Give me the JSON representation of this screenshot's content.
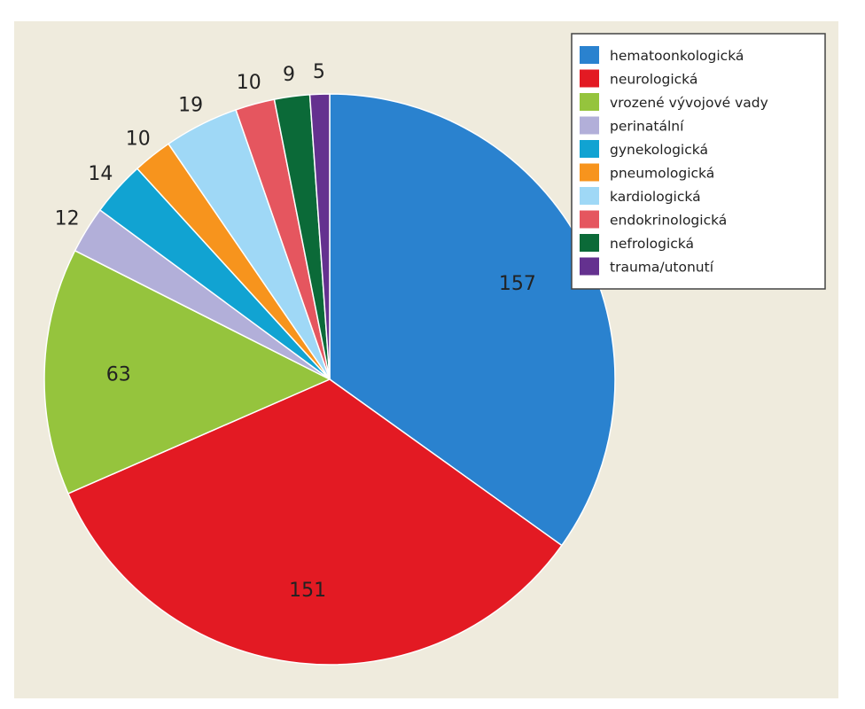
{
  "chart_data": {
    "type": "pie",
    "categories": [
      "hematoonkologická",
      "neurologická",
      "vrozené vývojové vady",
      "perinatální",
      "gynekologická",
      "pneumologická",
      "kardiologická",
      "endokrinologická",
      "nefrologická",
      "trauma/utonutí"
    ],
    "values": [
      157,
      151,
      63,
      12,
      14,
      10,
      19,
      10,
      9,
      5
    ],
    "colors": [
      "#2a82cf",
      "#e31a23",
      "#95c43d",
      "#b2afd9",
      "#11a3d2",
      "#f7941d",
      "#9fd8f6",
      "#e5565f",
      "#0b6a38",
      "#64318f"
    ],
    "value_labels": [
      "157",
      "151",
      "63",
      "12",
      "14",
      "10",
      "19",
      "10",
      "9",
      "5"
    ],
    "title": "",
    "legend_position": "top-right",
    "start_angle": "12 o'clock",
    "direction": "clockwise"
  }
}
